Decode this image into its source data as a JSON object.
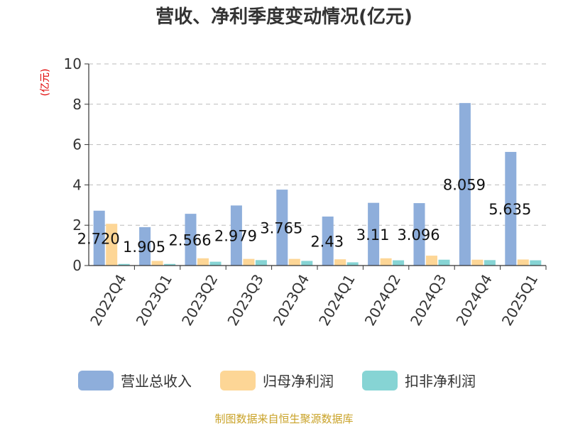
{
  "chart_data": {
    "type": "bar",
    "title": "营收、净利季度变动情况(亿元)",
    "ylabel": "(亿元)",
    "ylim": [
      0,
      10
    ],
    "yticks": [
      0,
      2,
      4,
      6,
      8,
      10
    ],
    "grid": true,
    "legend_position": "bottom",
    "categories": [
      "2022Q4",
      "2023Q1",
      "2023Q2",
      "2023Q3",
      "2023Q4",
      "2024Q1",
      "2024Q2",
      "2024Q3",
      "2024Q4",
      "2025Q1"
    ],
    "series": [
      {
        "name": "营业总收入",
        "color": "#8eaedb",
        "values": [
          2.72,
          1.905,
          2.566,
          2.979,
          3.765,
          2.43,
          3.11,
          3.096,
          8.059,
          5.635
        ],
        "data_labels": [
          "2.720",
          "1.905",
          "2.566",
          "2.979",
          "3.765",
          "2.43",
          "3.11",
          "3.096",
          "8.059",
          "5.635"
        ]
      },
      {
        "name": "归母净利润",
        "color": "#fdd696",
        "values": [
          2.07,
          0.23,
          0.36,
          0.33,
          0.33,
          0.31,
          0.36,
          0.49,
          0.29,
          0.3
        ]
      },
      {
        "name": "扣非净利润",
        "color": "#86d4d4",
        "values": [
          0.08,
          0.08,
          0.19,
          0.27,
          0.23,
          0.16,
          0.26,
          0.29,
          0.27,
          0.26
        ]
      }
    ]
  },
  "footer": {
    "source": "制图数据来自恒生聚源数据库"
  }
}
